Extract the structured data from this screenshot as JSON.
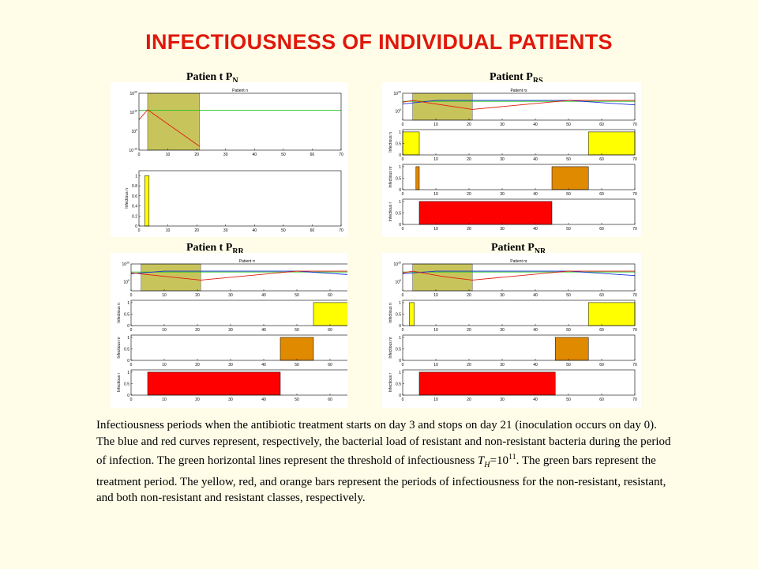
{
  "title": "INFECTIOUSNESS OF INDIVIDUAL PATIENTS",
  "colors": {
    "title": "#e0180c",
    "background": "#fffde8",
    "resistant_curve": "#1a2fd6",
    "nonresistant_curve": "#e21b12",
    "threshold_line": "#22c41e",
    "treatment_bar": "#c8c45c",
    "nonresistant_bar": "#ffff00",
    "resistant_bar": "#ff0000",
    "both_bar": "#e08a00"
  },
  "panels": [
    {
      "id": "pn",
      "label_main": "Patien t P",
      "label_sub": "N",
      "plot_title": "Patient n",
      "subplot_labels": [
        "Infectious n"
      ]
    },
    {
      "id": "prs",
      "label_main": "Patient P",
      "label_sub": "RS",
      "plot_title": "Patient rs",
      "subplot_labels": [
        "Infectious n",
        "Infectious nr",
        "Infectious r"
      ]
    },
    {
      "id": "prr",
      "label_main": "Patien t P",
      "label_sub": "RR",
      "plot_title": "Patient rr",
      "subplot_labels": [
        "Infectious n",
        "Infectious nr",
        "Infectious r"
      ]
    },
    {
      "id": "pnr",
      "label_main": "Patient  P",
      "label_sub": "NR",
      "plot_title": "Patient nr",
      "subplot_labels": [
        "Infectious n",
        "Infectious nr",
        "Infectious r"
      ]
    }
  ],
  "chart_data": [
    {
      "type": "line",
      "panel": "Patient P_N",
      "x_ticks": [
        0,
        10,
        20,
        30,
        40,
        50,
        60,
        70
      ],
      "y_ticks_log": [
        "10^-10",
        "10^0",
        "10^10",
        "10^20"
      ],
      "xlim": [
        0,
        70
      ],
      "treatment_period": [
        3,
        21
      ],
      "threshold": 11,
      "series": [
        {
          "x": [
            0,
            3,
            21
          ],
          "y": [
            6,
            11.3,
            -8
          ]
        }
      ]
    },
    {
      "type": "bar",
      "panel": "Patient P_N infectious n",
      "y_ticks": [
        0,
        0.2,
        0.4,
        0.6,
        0.8,
        1
      ],
      "intervals": [
        {
          "start": 2,
          "end": 3.5,
          "value": 1
        }
      ]
    },
    {
      "type": "line",
      "panel": "Patient P_RS",
      "x_ticks": [
        0,
        10,
        20,
        30,
        40,
        50,
        60,
        70
      ],
      "y_ticks_log": [
        "10^0",
        "10^20"
      ],
      "xlim": [
        0,
        70
      ],
      "treatment_period": [
        3,
        21
      ],
      "threshold": 11,
      "series": [
        {
          "x": [
            0,
            10,
            20,
            50,
            70
          ],
          "y": [
            8,
            12,
            12,
            12,
            7
          ]
        },
        {
          "x": [
            0,
            3,
            10,
            21,
            50,
            70
          ],
          "y": [
            10,
            12,
            8,
            2,
            12,
            12
          ]
        }
      ]
    },
    {
      "type": "bar",
      "panel": "Patient P_RS infectious n",
      "y_ticks": [
        0,
        0.5,
        1
      ],
      "intervals": [
        {
          "start": 0,
          "end": 5,
          "value": 1
        },
        {
          "start": 56,
          "end": 70,
          "value": 1
        }
      ]
    },
    {
      "type": "bar",
      "panel": "Patient P_RS infectious nr",
      "y_ticks": [
        0,
        0.5,
        1
      ],
      "intervals": [
        {
          "start": 4,
          "end": 5,
          "value": 1
        },
        {
          "start": 45,
          "end": 56,
          "value": 1
        }
      ]
    },
    {
      "type": "bar",
      "panel": "Patient P_RS infectious r",
      "y_ticks": [
        0,
        0.5,
        1
      ],
      "intervals": [
        {
          "start": 5,
          "end": 45,
          "value": 1
        }
      ]
    },
    {
      "type": "line",
      "panel": "Patient P_RR",
      "x_ticks": [
        0,
        10,
        20,
        30,
        40,
        50,
        60,
        70
      ],
      "y_ticks_log": [
        "10^0",
        "10^20"
      ],
      "xlim": [
        0,
        70
      ],
      "treatment_period": [
        3,
        21
      ],
      "threshold": 11,
      "series": [
        {
          "x": [
            0,
            10,
            21,
            50,
            70
          ],
          "y": [
            9,
            12,
            12,
            12,
            7
          ]
        },
        {
          "x": [
            0,
            21,
            50,
            70
          ],
          "y": [
            10,
            2,
            12,
            12
          ]
        }
      ]
    },
    {
      "type": "bar",
      "panel": "Patient P_RR infectious n",
      "y_ticks": [
        0,
        0.5,
        1
      ],
      "intervals": [
        {
          "start": 55,
          "end": 70,
          "value": 1
        }
      ]
    },
    {
      "type": "bar",
      "panel": "Patient P_RR infectious nr",
      "y_ticks": [
        0,
        0.5,
        1
      ],
      "intervals": [
        {
          "start": 45,
          "end": 55,
          "value": 1
        }
      ]
    },
    {
      "type": "bar",
      "panel": "Patient P_RR infectious r",
      "y_ticks": [
        0,
        0.5,
        1
      ],
      "intervals": [
        {
          "start": 5,
          "end": 45,
          "value": 1
        }
      ]
    },
    {
      "type": "line",
      "panel": "Patient P_NR",
      "x_ticks": [
        0,
        10,
        20,
        30,
        40,
        50,
        60,
        70
      ],
      "y_ticks_log": [
        "10^0",
        "10^20"
      ],
      "xlim": [
        0,
        70
      ],
      "treatment_period": [
        3,
        21
      ],
      "threshold": 11,
      "series": [
        {
          "x": [
            0,
            10,
            21,
            50,
            70
          ],
          "y": [
            9,
            12,
            12,
            12,
            7
          ]
        },
        {
          "x": [
            0,
            3,
            12,
            21,
            50,
            70
          ],
          "y": [
            10,
            12,
            6,
            2,
            12,
            12
          ]
        }
      ]
    },
    {
      "type": "bar",
      "panel": "Patient P_NR infectious n",
      "y_ticks": [
        0,
        0.5,
        1
      ],
      "intervals": [
        {
          "start": 2,
          "end": 3.5,
          "value": 1
        },
        {
          "start": 56,
          "end": 70,
          "value": 1
        }
      ]
    },
    {
      "type": "bar",
      "panel": "Patient P_NR infectious nr",
      "y_ticks": [
        0,
        0.5,
        1
      ],
      "intervals": [
        {
          "start": 46,
          "end": 56,
          "value": 1
        }
      ]
    },
    {
      "type": "bar",
      "panel": "Patient P_NR infectious r",
      "y_ticks": [
        0,
        0.5,
        1
      ],
      "intervals": [
        {
          "start": 5,
          "end": 46,
          "value": 1
        }
      ]
    }
  ],
  "caption": {
    "part1": "Infectiousness periods when the antibiotic treatment starts on day 3 and stops on day 21 (inoculation occurs on day 0). The blue and red curves represent, respectively, the bacterial load of resistant and non-resistant bacteria during the period of infection. The green horizontal lines represent the threshold of infectiousness ",
    "t_var": "T",
    "t_sub": "H",
    "eq": "=10",
    "exp": "11",
    "part2": ". The green bars represent the treatment period. The yellow, red, and orange bars represent the periods of infectiousness for the non-resistant, resistant, and both non-resistant and resistant classes, respectively."
  }
}
